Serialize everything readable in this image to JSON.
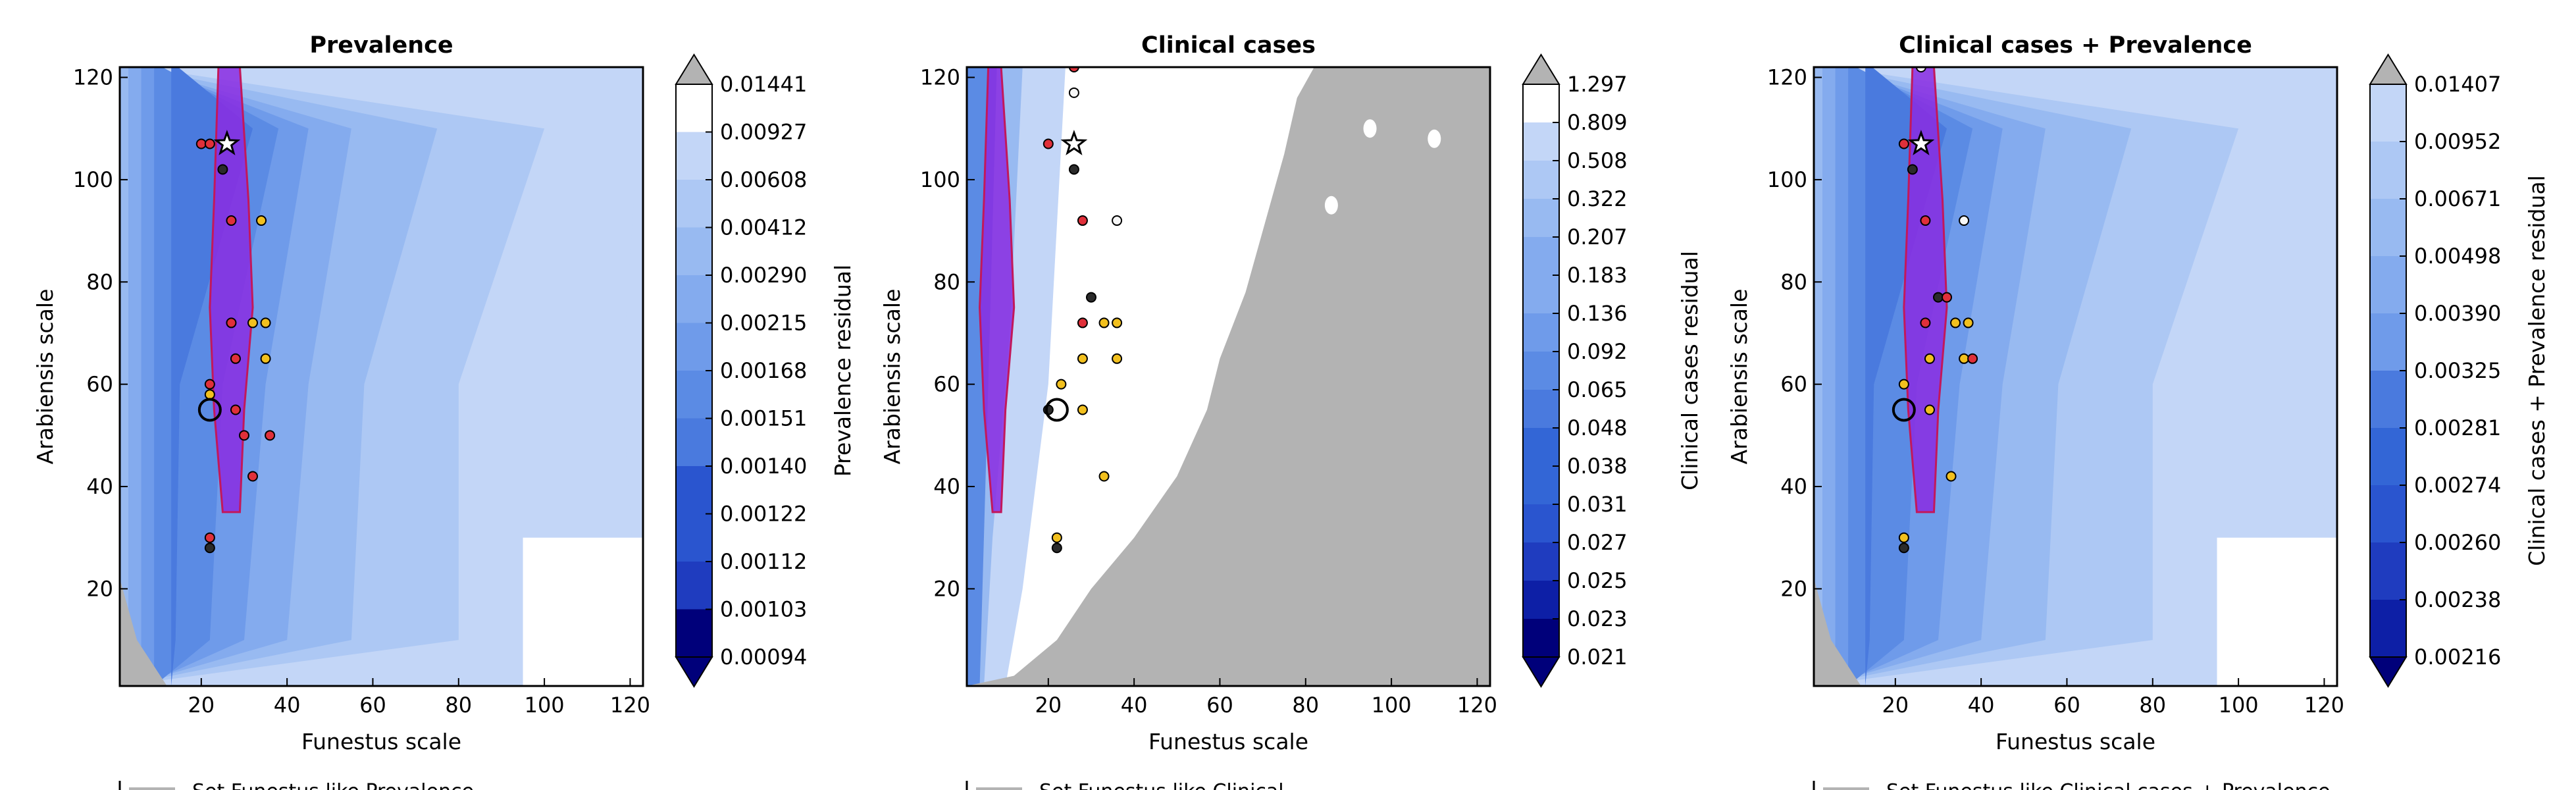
{
  "colors": {
    "background": "#ffffff",
    "masked_region": "#b3b3b3",
    "below_threshold_fill": "#8a2be2",
    "below_threshold_edge": "#c2185b",
    "marker_red": "#e0303a",
    "marker_black": "#2b2b2b",
    "marker_yellow": "#f2c01e",
    "marker_white": "#f7f7f7",
    "colormap_levels": [
      "#00007a",
      "#0d1fa6",
      "#1f3cbf",
      "#2a55cf",
      "#3366d6",
      "#4a7ade",
      "#5b8be4",
      "#6f9bea",
      "#84abee",
      "#98baf1",
      "#adc8f4",
      "#c3d6f7",
      "#ffffff"
    ]
  },
  "legend_text": [
    "Set Funestus like Prevalence",
    "Set Funestus like Clinical",
    "Set Funestus like Clinical cases + Prevalence"
  ],
  "chart_data": [
    {
      "type": "heatmap",
      "title": "Prevalence",
      "xlabel": "Funestus scale",
      "ylabel": "Arabiensis scale",
      "xlim": [
        1,
        123
      ],
      "ylim": [
        1,
        122
      ],
      "xticks": [
        "20",
        "40",
        "60",
        "80",
        "100",
        "120"
      ],
      "yticks": [
        "20",
        "40",
        "60",
        "80",
        "100",
        "120"
      ],
      "colorbar_label": "Prevalence residual",
      "colorbar_ticks": [
        "0.01441",
        "0.00927",
        "0.00608",
        "0.00412",
        "0.00290",
        "0.00215",
        "0.00168",
        "0.00151",
        "0.00140",
        "0.00122",
        "0.00112",
        "0.00103",
        "0.00094"
      ],
      "trough_x": [
        24,
        28
      ],
      "best_fit": {
        "x": 26,
        "y": 107
      },
      "circled": {
        "x": 22,
        "y": 55
      },
      "points": [
        {
          "x": 20,
          "y": 107,
          "c": "red"
        },
        {
          "x": 22,
          "y": 107,
          "c": "red"
        },
        {
          "x": 25,
          "y": 102,
          "c": "black"
        },
        {
          "x": 27,
          "y": 92,
          "c": "red"
        },
        {
          "x": 34,
          "y": 92,
          "c": "yellow"
        },
        {
          "x": 27,
          "y": 72,
          "c": "red"
        },
        {
          "x": 32,
          "y": 72,
          "c": "yellow"
        },
        {
          "x": 35,
          "y": 72,
          "c": "yellow"
        },
        {
          "x": 28,
          "y": 65,
          "c": "red"
        },
        {
          "x": 35,
          "y": 65,
          "c": "yellow"
        },
        {
          "x": 22,
          "y": 60,
          "c": "red"
        },
        {
          "x": 22,
          "y": 58,
          "c": "yellow"
        },
        {
          "x": 28,
          "y": 55,
          "c": "red"
        },
        {
          "x": 30,
          "y": 50,
          "c": "red"
        },
        {
          "x": 36,
          "y": 50,
          "c": "red"
        },
        {
          "x": 32,
          "y": 42,
          "c": "red"
        },
        {
          "x": 22,
          "y": 30,
          "c": "red"
        },
        {
          "x": 22,
          "y": 28,
          "c": "black"
        }
      ]
    },
    {
      "type": "heatmap",
      "title": "Clinical cases",
      "xlabel": "Funestus scale",
      "ylabel": "Arabiensis scale",
      "xlim": [
        1,
        123
      ],
      "ylim": [
        1,
        122
      ],
      "xticks": [
        "20",
        "40",
        "60",
        "80",
        "100",
        "120"
      ],
      "yticks": [
        "20",
        "40",
        "60",
        "80",
        "100",
        "120"
      ],
      "colorbar_label": "Clinical cases residual",
      "colorbar_ticks": [
        "1.297",
        "0.809",
        "0.508",
        "0.322",
        "0.207",
        "0.183",
        "0.136",
        "0.092",
        "0.065",
        "0.048",
        "0.038",
        "0.031",
        "0.027",
        "0.025",
        "0.023",
        "0.021"
      ],
      "trough_x": [
        6,
        8
      ],
      "best_fit": {
        "x": 26,
        "y": 107
      },
      "circled": {
        "x": 22,
        "y": 55
      },
      "points": [
        {
          "x": 26,
          "y": 122,
          "c": "red"
        },
        {
          "x": 26,
          "y": 117,
          "c": "white"
        },
        {
          "x": 20,
          "y": 107,
          "c": "red"
        },
        {
          "x": 26,
          "y": 102,
          "c": "black"
        },
        {
          "x": 28,
          "y": 92,
          "c": "red"
        },
        {
          "x": 36,
          "y": 92,
          "c": "white"
        },
        {
          "x": 30,
          "y": 77,
          "c": "black"
        },
        {
          "x": 28,
          "y": 72,
          "c": "red"
        },
        {
          "x": 33,
          "y": 72,
          "c": "yellow"
        },
        {
          "x": 36,
          "y": 72,
          "c": "yellow"
        },
        {
          "x": 28,
          "y": 65,
          "c": "yellow"
        },
        {
          "x": 36,
          "y": 65,
          "c": "yellow"
        },
        {
          "x": 23,
          "y": 60,
          "c": "yellow"
        },
        {
          "x": 20,
          "y": 55,
          "c": "black"
        },
        {
          "x": 28,
          "y": 55,
          "c": "yellow"
        },
        {
          "x": 33,
          "y": 42,
          "c": "yellow"
        },
        {
          "x": 22,
          "y": 30,
          "c": "yellow"
        },
        {
          "x": 22,
          "y": 28,
          "c": "black"
        }
      ]
    },
    {
      "type": "heatmap",
      "title": "Clinical cases + Prevalence",
      "xlabel": "Funestus scale",
      "ylabel": "Arabiensis scale",
      "xlim": [
        1,
        123
      ],
      "ylim": [
        1,
        122
      ],
      "xticks": [
        "20",
        "40",
        "60",
        "80",
        "100",
        "120"
      ],
      "yticks": [
        "20",
        "40",
        "60",
        "80",
        "100",
        "120"
      ],
      "colorbar_label": "Clinical cases + Prevalence residual",
      "colorbar_ticks": [
        "0.01407",
        "0.00952",
        "0.00671",
        "0.00498",
        "0.00390",
        "0.00325",
        "0.00281",
        "0.00274",
        "0.00260",
        "0.00238",
        "0.00216"
      ],
      "trough_x": [
        24,
        28
      ],
      "best_fit": {
        "x": 26,
        "y": 107
      },
      "circled": {
        "x": 22,
        "y": 55
      },
      "points": [
        {
          "x": 26,
          "y": 122,
          "c": "white"
        },
        {
          "x": 22,
          "y": 107,
          "c": "red"
        },
        {
          "x": 24,
          "y": 102,
          "c": "black"
        },
        {
          "x": 27,
          "y": 92,
          "c": "red"
        },
        {
          "x": 36,
          "y": 92,
          "c": "white"
        },
        {
          "x": 30,
          "y": 77,
          "c": "black"
        },
        {
          "x": 32,
          "y": 77,
          "c": "red"
        },
        {
          "x": 27,
          "y": 72,
          "c": "red"
        },
        {
          "x": 34,
          "y": 72,
          "c": "yellow"
        },
        {
          "x": 37,
          "y": 72,
          "c": "yellow"
        },
        {
          "x": 28,
          "y": 65,
          "c": "yellow"
        },
        {
          "x": 36,
          "y": 65,
          "c": "yellow"
        },
        {
          "x": 38,
          "y": 65,
          "c": "red"
        },
        {
          "x": 22,
          "y": 60,
          "c": "yellow"
        },
        {
          "x": 28,
          "y": 55,
          "c": "yellow"
        },
        {
          "x": 33,
          "y": 42,
          "c": "yellow"
        },
        {
          "x": 22,
          "y": 30,
          "c": "yellow"
        },
        {
          "x": 22,
          "y": 28,
          "c": "black"
        }
      ]
    }
  ]
}
